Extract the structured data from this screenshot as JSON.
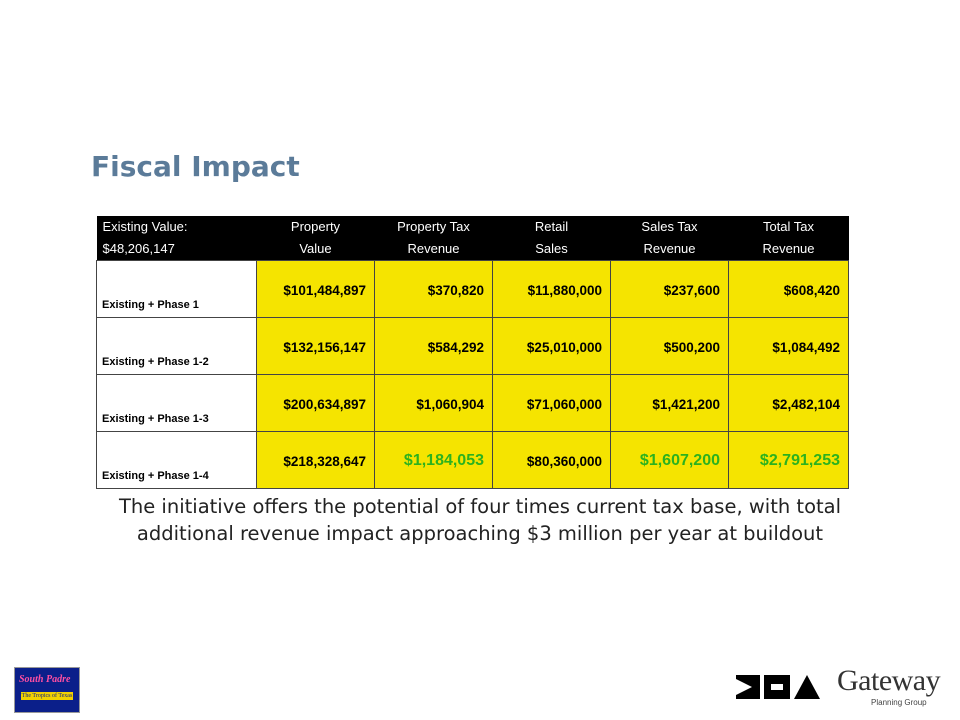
{
  "title": "Fiscal Impact",
  "table": {
    "header_row1": [
      "Existing Value:",
      "Property",
      "Property Tax",
      "Retail",
      "Sales Tax",
      "Total Tax"
    ],
    "header_row2": [
      "$48,206,147",
      "Value",
      "Revenue",
      "Sales",
      "Revenue",
      "Revenue"
    ],
    "rows": [
      {
        "label": "Existing + Phase 1",
        "property_value": "$101,484,897",
        "property_tax": "$370,820",
        "retail_sales": "$11,880,000",
        "sales_tax": "$237,600",
        "total_tax": "$608,420"
      },
      {
        "label": "Existing + Phase 1-2",
        "property_value": "$132,156,147",
        "property_tax": "$584,292",
        "retail_sales": "$25,010,000",
        "sales_tax": "$500,200",
        "total_tax": "$1,084,492"
      },
      {
        "label": "Existing + Phase 1-3",
        "property_value": "$200,634,897",
        "property_tax": "$1,060,904",
        "retail_sales": "$71,060,000",
        "sales_tax": "$1,421,200",
        "total_tax": "$2,482,104"
      },
      {
        "label": "Existing + Phase 1-4",
        "property_value": "$218,328,647",
        "property_tax": "$1,184,053",
        "retail_sales": "$80,360,000",
        "sales_tax": "$1,607,200",
        "total_tax": "$2,791,253"
      }
    ],
    "colors": {
      "header_bg": "#000000",
      "cell_bg": "#f5e400",
      "highlight_text": "#2bb21e"
    }
  },
  "summary_line1": "The initiative offers the potential of four times current tax base, with total",
  "summary_line2": "additional revenue impact approaching $3 million per year at buildout",
  "logos": {
    "left_line1": "South Padre",
    "left_line2": "The Tropics of Texas",
    "right_kha_icon": "kha-logo-icon",
    "right_gateway_name": "Gateway",
    "right_gateway_sub": "Planning Group"
  }
}
